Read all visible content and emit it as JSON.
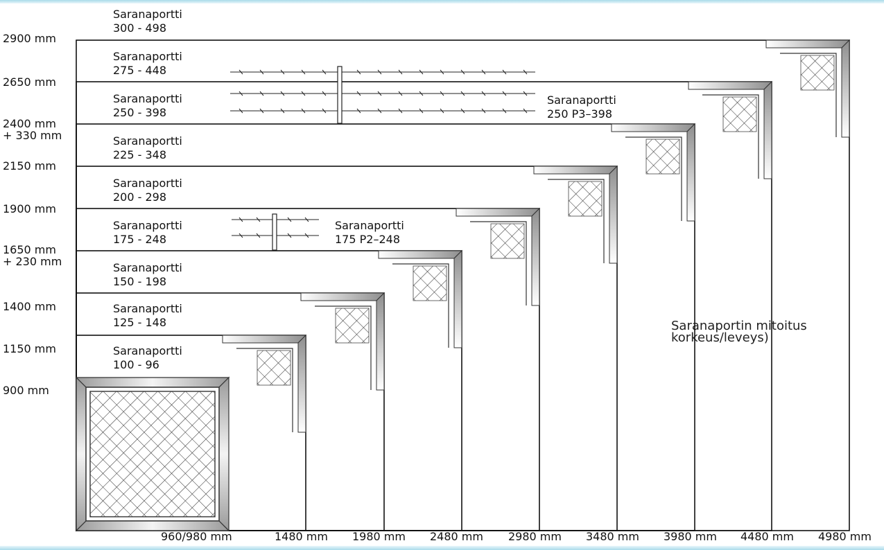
{
  "y_axis_labels": [
    {
      "id": "2900",
      "text": "2900 mm"
    },
    {
      "id": "2650",
      "text": "2650 mm"
    },
    {
      "id": "2400",
      "text": "2400 mm\n+ 330 mm"
    },
    {
      "id": "2150",
      "text": "2150 mm"
    },
    {
      "id": "1900",
      "text": "1900 mm"
    },
    {
      "id": "1650",
      "text": "1650 mm\n+ 230 mm"
    },
    {
      "id": "1400",
      "text": "1400 mm"
    },
    {
      "id": "1150",
      "text": "1150 mm"
    },
    {
      "id": "900",
      "text": "900 mm"
    }
  ],
  "x_axis_labels": [
    "960/980 mm",
    "1480 mm",
    "1980 mm",
    "2480 mm",
    "2980 mm",
    "3480 mm",
    "3980 mm",
    "4480 mm",
    "4980 mm"
  ],
  "gate_labels": [
    {
      "id": "300",
      "text": "Saranaportti\n300 - 498"
    },
    {
      "id": "275",
      "text": "Saranaportti\n275 - 448"
    },
    {
      "id": "250",
      "text": "Saranaportti\n250 - 398"
    },
    {
      "id": "250p3",
      "text": "Saranaportti\n250 P3–398"
    },
    {
      "id": "225",
      "text": "Saranaportti\n225 - 348"
    },
    {
      "id": "200",
      "text": "Saranaportti\n200 - 298"
    },
    {
      "id": "175",
      "text": "Saranaportti\n175 - 248"
    },
    {
      "id": "175p2",
      "text": "Saranaportti\n175 P2–248"
    },
    {
      "id": "150",
      "text": "Saranaportti\n150 - 198"
    },
    {
      "id": "125",
      "text": "Saranaportti\n125 - 148"
    },
    {
      "id": "100",
      "text": "Saranaportti\n100 - 96"
    }
  ],
  "note": "Saranaportin mitoitus\nkorkeus/leveys)",
  "colors": {
    "frame": "#b8b8b8",
    "line": "#111111",
    "band": "#a9dbe9"
  }
}
